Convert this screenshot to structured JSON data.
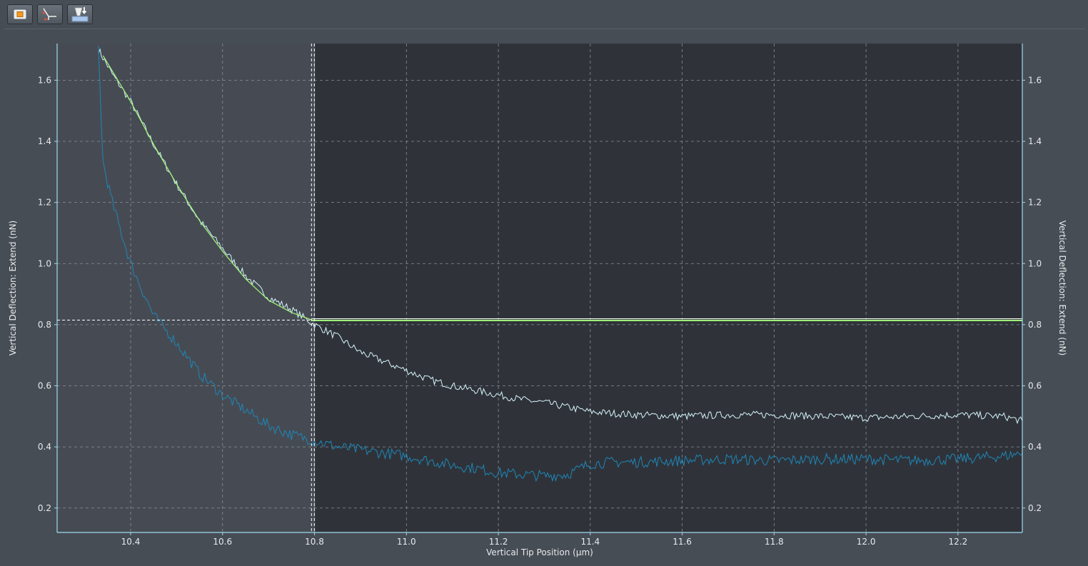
{
  "toolbar": {
    "buttons": [
      {
        "icon": "stop-icon"
      },
      {
        "icon": "contact-point-icon"
      },
      {
        "icon": "indent-download-icon"
      }
    ]
  },
  "colors": {
    "background": "#474d55",
    "plot_dark": "#2f3339",
    "plot_light": "#464b53",
    "axis": "#9fdbf0",
    "extend_trace": "#d6f4fb",
    "retract_trace": "#1f86b8",
    "fit": "#9ef07a",
    "baseline": "#ffffff"
  },
  "chart_data": {
    "type": "line",
    "title": "",
    "xlabel": "Vertical Tip Position (µm)",
    "ylabel": "Vertical Deflection: Extend (nN)",
    "ylabel_right": "Vertical Deflection: Extend (nN)",
    "xlim": [
      10.24,
      12.34
    ],
    "ylim": [
      0.12,
      1.72
    ],
    "x_ticks": [
      "10.4",
      "10.6",
      "10.8",
      "11.0",
      "11.2",
      "11.4",
      "11.6",
      "11.8",
      "12.0",
      "12.2"
    ],
    "y_ticks": [
      "0.2",
      "0.4",
      "0.6",
      "0.8",
      "1.0",
      "1.2",
      "1.4",
      "1.6"
    ],
    "grid": true,
    "contact_point": {
      "x": 10.795,
      "y": 0.815
    },
    "series": [
      {
        "key": "extend",
        "color": "#d6f4fb",
        "x": [
          10.33,
          10.36,
          10.4,
          10.45,
          10.5,
          10.55,
          10.6,
          10.65,
          10.7,
          10.75,
          10.8,
          10.85,
          10.9,
          10.95,
          11.0,
          11.05,
          11.1,
          11.15,
          11.2,
          11.25,
          11.3,
          11.35,
          11.4,
          11.5,
          11.6,
          11.7,
          11.8,
          11.9,
          12.0,
          12.1,
          12.2,
          12.3,
          12.34
        ],
        "y": [
          1.7,
          1.62,
          1.53,
          1.39,
          1.26,
          1.14,
          1.05,
          0.96,
          0.89,
          0.85,
          0.8,
          0.76,
          0.71,
          0.68,
          0.65,
          0.62,
          0.6,
          0.585,
          0.57,
          0.555,
          0.545,
          0.53,
          0.515,
          0.505,
          0.5,
          0.505,
          0.505,
          0.5,
          0.495,
          0.5,
          0.505,
          0.5,
          0.485
        ]
      },
      {
        "key": "retract",
        "color": "#1f86b8",
        "x": [
          10.33,
          10.335,
          10.34,
          10.36,
          10.38,
          10.4,
          10.42,
          10.45,
          10.5,
          10.55,
          10.6,
          10.65,
          10.7,
          10.75,
          10.8,
          10.85,
          10.9,
          10.95,
          11.0,
          11.05,
          11.1,
          11.15,
          11.2,
          11.25,
          11.3,
          11.35,
          11.4,
          11.45,
          11.5,
          11.6,
          11.7,
          11.8,
          11.9,
          12.0,
          12.1,
          12.2,
          12.3,
          12.34
        ],
        "y": [
          1.7,
          1.5,
          1.33,
          1.2,
          1.1,
          1.0,
          0.93,
          0.83,
          0.74,
          0.64,
          0.57,
          0.52,
          0.47,
          0.44,
          0.42,
          0.4,
          0.39,
          0.38,
          0.37,
          0.355,
          0.34,
          0.33,
          0.315,
          0.31,
          0.305,
          0.31,
          0.345,
          0.35,
          0.35,
          0.355,
          0.36,
          0.355,
          0.36,
          0.36,
          0.355,
          0.36,
          0.37,
          0.38
        ]
      },
      {
        "key": "fit",
        "color": "#9ef07a",
        "x": [
          10.34,
          10.4,
          10.45,
          10.5,
          10.55,
          10.6,
          10.65,
          10.7,
          10.75,
          10.795,
          10.8,
          12.34
        ],
        "y": [
          1.68,
          1.53,
          1.39,
          1.26,
          1.14,
          1.04,
          0.95,
          0.88,
          0.84,
          0.815,
          0.815,
          0.815
        ]
      }
    ]
  }
}
